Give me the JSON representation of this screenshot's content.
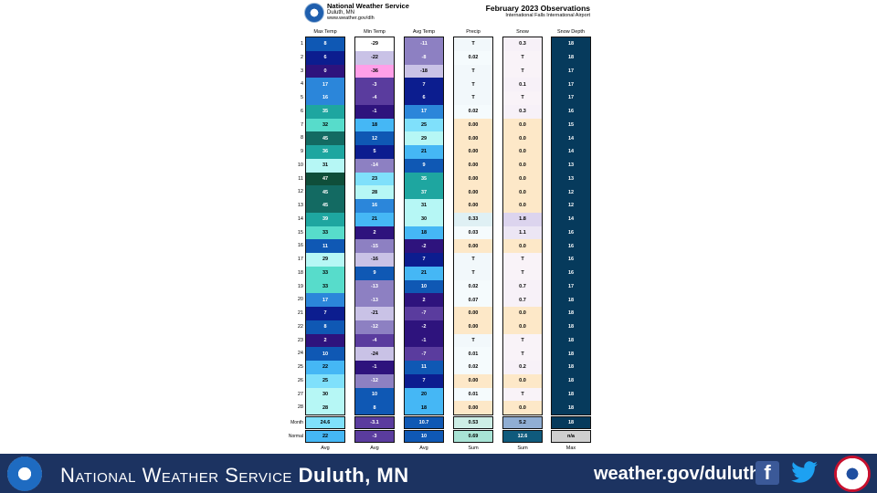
{
  "header": {
    "org_title": "National Weather Service",
    "org_sub": "Duluth, MN",
    "org_url": "www.weather.gov/dlh",
    "title": "February 2023 Observations",
    "subtitle": "International Falls International Airport"
  },
  "columns": [
    {
      "key": "max",
      "label": "Max Temp",
      "footer": "Avg"
    },
    {
      "key": "min",
      "label": "Min Temp",
      "footer": "Avg"
    },
    {
      "key": "avg",
      "label": "Avg Temp",
      "footer": "Avg"
    },
    {
      "key": "precip",
      "label": "Precip",
      "footer": "Sum"
    },
    {
      "key": "snow",
      "label": "Snow",
      "footer": "Sum"
    },
    {
      "key": "depth",
      "label": "Snow Depth",
      "footer": "Max"
    }
  ],
  "days": [
    "1",
    "2",
    "3",
    "4",
    "5",
    "6",
    "7",
    "8",
    "9",
    "10",
    "11",
    "12",
    "13",
    "14",
    "15",
    "16",
    "17",
    "18",
    "19",
    "20",
    "21",
    "22",
    "23",
    "24",
    "25",
    "26",
    "27",
    "28"
  ],
  "values": {
    "max": [
      "8",
      "6",
      "0",
      "17",
      "16",
      "35",
      "32",
      "45",
      "36",
      "31",
      "47",
      "45",
      "45",
      "39",
      "33",
      "11",
      "29",
      "33",
      "33",
      "17",
      "7",
      "8",
      "2",
      "10",
      "22",
      "25",
      "30",
      "28"
    ],
    "min": [
      "-29",
      "-22",
      "-36",
      "-3",
      "-4",
      "-1",
      "18",
      "12",
      "5",
      "-14",
      "23",
      "28",
      "16",
      "21",
      "2",
      "-15",
      "-16",
      "9",
      "-13",
      "-13",
      "-21",
      "-12",
      "-4",
      "-24",
      "-1",
      "-12",
      "10",
      "8"
    ],
    "avg": [
      "-11",
      "-8",
      "-18",
      "7",
      "6",
      "17",
      "25",
      "29",
      "21",
      "9",
      "35",
      "37",
      "31",
      "30",
      "18",
      "-2",
      "7",
      "21",
      "10",
      "2",
      "-7",
      "-2",
      "-1",
      "-7",
      "11",
      "7",
      "20",
      "18"
    ],
    "precip": [
      "T",
      "0.02",
      "T",
      "T",
      "T",
      "0.02",
      "0.00",
      "0.00",
      "0.00",
      "0.00",
      "0.00",
      "0.00",
      "0.00",
      "0.33",
      "0.03",
      "0.00",
      "T",
      "T",
      "0.02",
      "0.07",
      "0.00",
      "0.00",
      "T",
      "0.01",
      "0.02",
      "0.00",
      "0.01",
      "0.00"
    ],
    "snow": [
      "0.3",
      "T",
      "T",
      "0.1",
      "T",
      "0.3",
      "0.0",
      "0.0",
      "0.0",
      "0.0",
      "0.0",
      "0.0",
      "0.0",
      "1.8",
      "1.1",
      "0.0",
      "T",
      "T",
      "0.7",
      "0.7",
      "0.0",
      "0.0",
      "T",
      "T",
      "0.2",
      "0.0",
      "T",
      "0.0"
    ],
    "depth": [
      "18",
      "18",
      "17",
      "17",
      "17",
      "16",
      "15",
      "14",
      "14",
      "13",
      "13",
      "12",
      "12",
      "14",
      "16",
      "16",
      "16",
      "16",
      "17",
      "18",
      "18",
      "18",
      "18",
      "18",
      "18",
      "18",
      "18",
      "18"
    ]
  },
  "summary": {
    "month_label": "Month",
    "normal_label": "Normal",
    "month": {
      "max": "24.6",
      "min": "-3.1",
      "avg": "10.7",
      "precip": "0.53",
      "snow": "5.2",
      "depth": "18"
    },
    "normal": {
      "max": "22",
      "min": "-3",
      "avg": "10",
      "precip": "0.69",
      "snow": "12.6",
      "depth": "n/a"
    }
  },
  "colors": {
    "precip_zero": "#fde8c8",
    "precip_trace": "#f2f8fb",
    "snow_zero": "#fde8c8",
    "snow_trace": "#f9f3f8",
    "depth": "#063a5c",
    "banner": "#1c3361"
  },
  "banner": {
    "text_caps": "National Weather Service",
    "text_bold": "Duluth, MN",
    "url": "weather.gov/duluth",
    "facebook_icon": "facebook-icon",
    "twitter_icon": "twitter-icon"
  }
}
